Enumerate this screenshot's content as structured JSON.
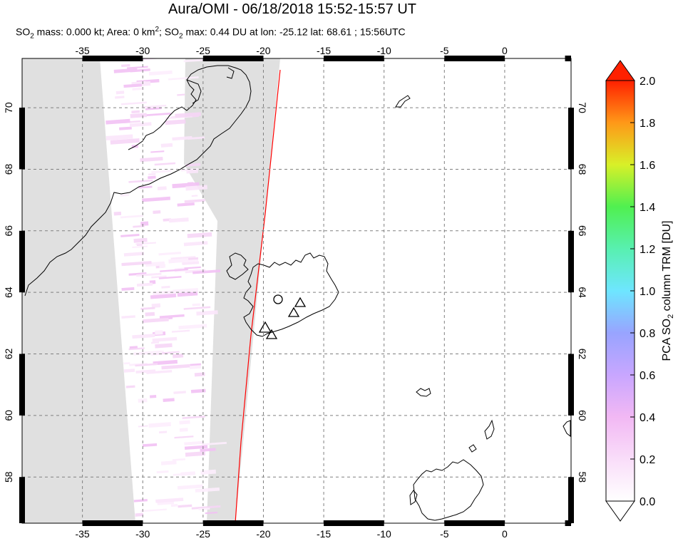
{
  "title": "Aura/OMI - 06/18/2018 15:52-15:57 UT",
  "subtitle": {
    "p1": "SO",
    "s1": "2",
    "p2": " mass: 0.000 kt; Area: 0 km",
    "sup": "2",
    "p3": "; SO",
    "s2": "2",
    "p4": " max: 0.44 DU at lon: -25.12 lat: 68.61 ; 15:56UTC"
  },
  "map": {
    "lon_ticks": [
      "-35",
      "-30",
      "-25",
      "-20",
      "-15",
      "-10",
      "-5",
      "0"
    ],
    "lat_ticks": [
      "58",
      "60",
      "62",
      "64",
      "66",
      "68",
      "70"
    ],
    "lon_range": [
      -40,
      5.5
    ],
    "lat_range": [
      56.5,
      71.6
    ],
    "volcano_markers": 4
  },
  "colorbar": {
    "label_p1": "PCA SO",
    "label_sub": "2",
    "label_p2": " column TRM [DU]",
    "ticks": [
      "0.0",
      "0.2",
      "0.4",
      "0.6",
      "0.8",
      "1.0",
      "1.2",
      "1.4",
      "1.6",
      "1.8",
      "2.0"
    ],
    "range": [
      0.0,
      2.0
    ],
    "colors": [
      "#ffffff",
      "#f6c8f6",
      "#c8a0ff",
      "#8ca0ff",
      "#50e0ff",
      "#40ff80",
      "#c0ff30",
      "#ffe020",
      "#ff8010",
      "#ff2000"
    ]
  }
}
